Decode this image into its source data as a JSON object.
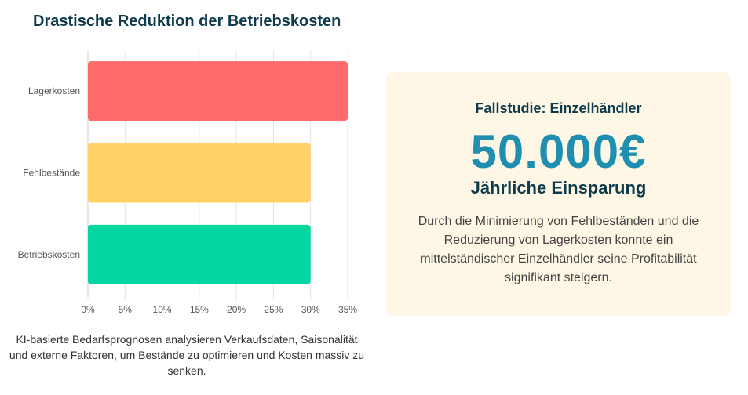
{
  "chart_data": {
    "type": "bar",
    "orientation": "horizontal",
    "title": "Drastische Reduktion der Betriebskosten",
    "categories": [
      "Lagerkosten",
      "Fehlbestände",
      "Betriebskosten"
    ],
    "values": [
      35,
      30,
      30
    ],
    "colors": [
      "#ff6b6b",
      "#ffd166",
      "#06d6a0"
    ],
    "xlim": [
      0,
      35
    ],
    "xticks": [
      0,
      5,
      10,
      15,
      20,
      25,
      30,
      35
    ],
    "tick_suffix": "%",
    "xlabel": "",
    "ylabel": "",
    "grid": true
  },
  "caption": "KI-basierte Bedarfsprognosen analysieren Verkaufsdaten, Saisonalität und externe Faktoren, um Bestände zu optimieren und Kosten massiv zu senken.",
  "card": {
    "title": "Fallstudie: Einzelhändler",
    "big_value": "50.000€",
    "subtitle": "Jährliche Einsparung",
    "text": "Durch die Minimierung von Fehlbeständen und die Reduzierung von Lagerkosten konnte ein mittelständischer Einzelhändler seine Profitabilität signifikant steigern."
  }
}
